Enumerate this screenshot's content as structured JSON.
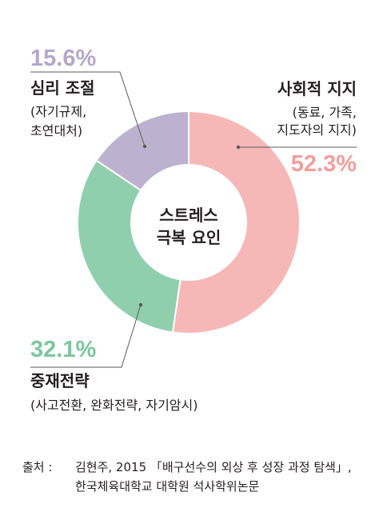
{
  "chart_data": {
    "type": "pie",
    "variant": "donut",
    "center_label": [
      "스트레스",
      "극복 요인"
    ],
    "categories": [
      "사회적 지지",
      "중재전략",
      "심리 조절"
    ],
    "category_details": [
      [
        "(동료, 가족,",
        "지도자의 지지)"
      ],
      [
        "(사고전환, 완화전략, 자기암시)"
      ],
      [
        "(자기규제,",
        "초연대처)"
      ]
    ],
    "values": [
      52.3,
      32.1,
      15.6
    ],
    "value_labels": [
      "52.3%",
      "32.1%",
      "15.6%"
    ],
    "colors": [
      "#f5b8b6",
      "#8fcfad",
      "#bcb2cf"
    ],
    "label_colors": [
      "#f29e9d",
      "#7cc5a0",
      "#b2a8c9"
    ],
    "start_angle_deg": 0,
    "direction": "clockwise"
  },
  "source": {
    "label": "출처 :",
    "line1": "김현주, 2015 「배구선수의 외상 후 성장 과정 탐색」,",
    "line2": "한국체육대학교 대학원 석사학위논문"
  }
}
